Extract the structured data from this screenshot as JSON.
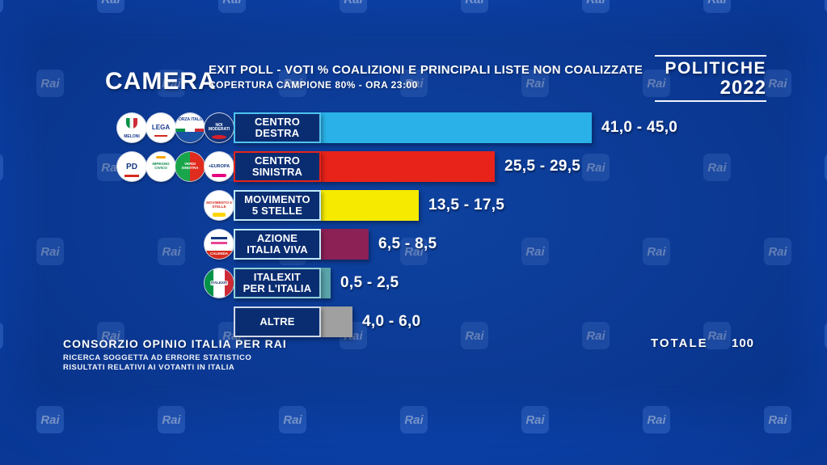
{
  "watermark": "Rai",
  "header": {
    "section": "CAMERA",
    "title": "EXIT POLL - VOTI % COALIZIONI E PRINCIPALI LISTE NON COALIZZATE",
    "subtitle": "COPERTURA CAMPIONE 80% - ORA 23:00",
    "event": {
      "line1": "POLITICHE",
      "line2": "2022"
    }
  },
  "chart_data": {
    "type": "bar",
    "orientation": "horizontal",
    "title": "EXIT POLL - VOTI % COALIZIONI E PRINCIPALI LISTE NON COALIZZATE",
    "subtitle": "COPERTURA CAMPIONE 80% - ORA 23:00",
    "unit": "percent",
    "xlim": [
      0,
      50
    ],
    "grid": false,
    "legend": false,
    "categories": [
      "CENTRO DESTRA",
      "CENTRO SINISTRA",
      "MOVIMENTO 5 STELLE",
      "AZIONE ITALIA VIVA",
      "ITALEXIT PER L'ITALIA",
      "ALTRE"
    ],
    "rows": [
      {
        "label_lines": [
          "CENTRO",
          "DESTRA"
        ],
        "range_low": 41.0,
        "range_high": 45.0,
        "value_label": "41,0 - 45,0",
        "color": "#2ab2e8",
        "plate_border": "#4fc3f0",
        "logos": [
          {
            "id": "fdi",
            "label": "MELONI",
            "name": "fratelli-d-italia-logo"
          },
          {
            "id": "lega",
            "label": "LEGA",
            "name": "lega-salvini-logo"
          },
          {
            "id": "fi",
            "label": "FORZA ITALIA",
            "name": "forza-italia-logo"
          },
          {
            "id": "nm",
            "label": "NOI MODERATI",
            "name": "noi-moderati-logo"
          }
        ]
      },
      {
        "label_lines": [
          "CENTRO",
          "SINISTRA"
        ],
        "range_low": 25.5,
        "range_high": 29.5,
        "value_label": "25,5 - 29,5",
        "color": "#e8231a",
        "plate_border": "#e8231a",
        "logos": [
          {
            "id": "pd",
            "label": "PD",
            "name": "partito-democratico-logo"
          },
          {
            "id": "ic",
            "label": "IMPEGNO CIVICO",
            "name": "impegno-civico-logo"
          },
          {
            "id": "avs",
            "label": "VERDI SINISTRA",
            "name": "verdi-sinistra-logo"
          },
          {
            "id": "pe",
            "label": "+EUROPA",
            "name": "piu-europa-logo"
          }
        ]
      },
      {
        "label_lines": [
          "MOVIMENTO",
          "5 STELLE"
        ],
        "range_low": 13.5,
        "range_high": 17.5,
        "value_label": "13,5 - 17,5",
        "color": "#f5ea00",
        "plate_border": "#bfe9fb",
        "logos": [
          {
            "id": "m5s",
            "label": "MOVIMENTO 5 STELLE",
            "name": "movimento-5-stelle-logo"
          }
        ]
      },
      {
        "label_lines": [
          "AZIONE",
          "ITALIA VIVA"
        ],
        "range_low": 6.5,
        "range_high": 8.5,
        "value_label": "6,5 - 8,5",
        "color": "#8c2156",
        "plate_border": "#bfe9fb",
        "logos": [
          {
            "id": "az",
            "label": "CALENDA",
            "name": "azione-italia-viva-logo"
          }
        ]
      },
      {
        "label_lines": [
          "ITALEXIT",
          "PER L'ITALIA"
        ],
        "range_low": 0.5,
        "range_high": 2.5,
        "value_label": "0,5 - 2,5",
        "color": "#5aa3ab",
        "plate_border": "#8fd0da",
        "logos": [
          {
            "id": "ix",
            "label": "ITALEXIT",
            "name": "italexit-logo"
          }
        ]
      },
      {
        "label_lines": [
          "ALTRE"
        ],
        "range_low": 4.0,
        "range_high": 6.0,
        "value_label": "4,0 - 6,0",
        "color": "#a0a0a0",
        "plate_border": "#cfd8e8",
        "logos": []
      }
    ],
    "total": {
      "label": "TOTALE",
      "value": "100"
    }
  },
  "footer": {
    "source": "CONSORZIO OPINIO ITALIA PER RAI",
    "note1": "RICERCA SOGGETTA AD ERRORE STATISTICO",
    "note2": "RISULTATI RELATIVI AI VOTANTI IN ITALIA"
  }
}
